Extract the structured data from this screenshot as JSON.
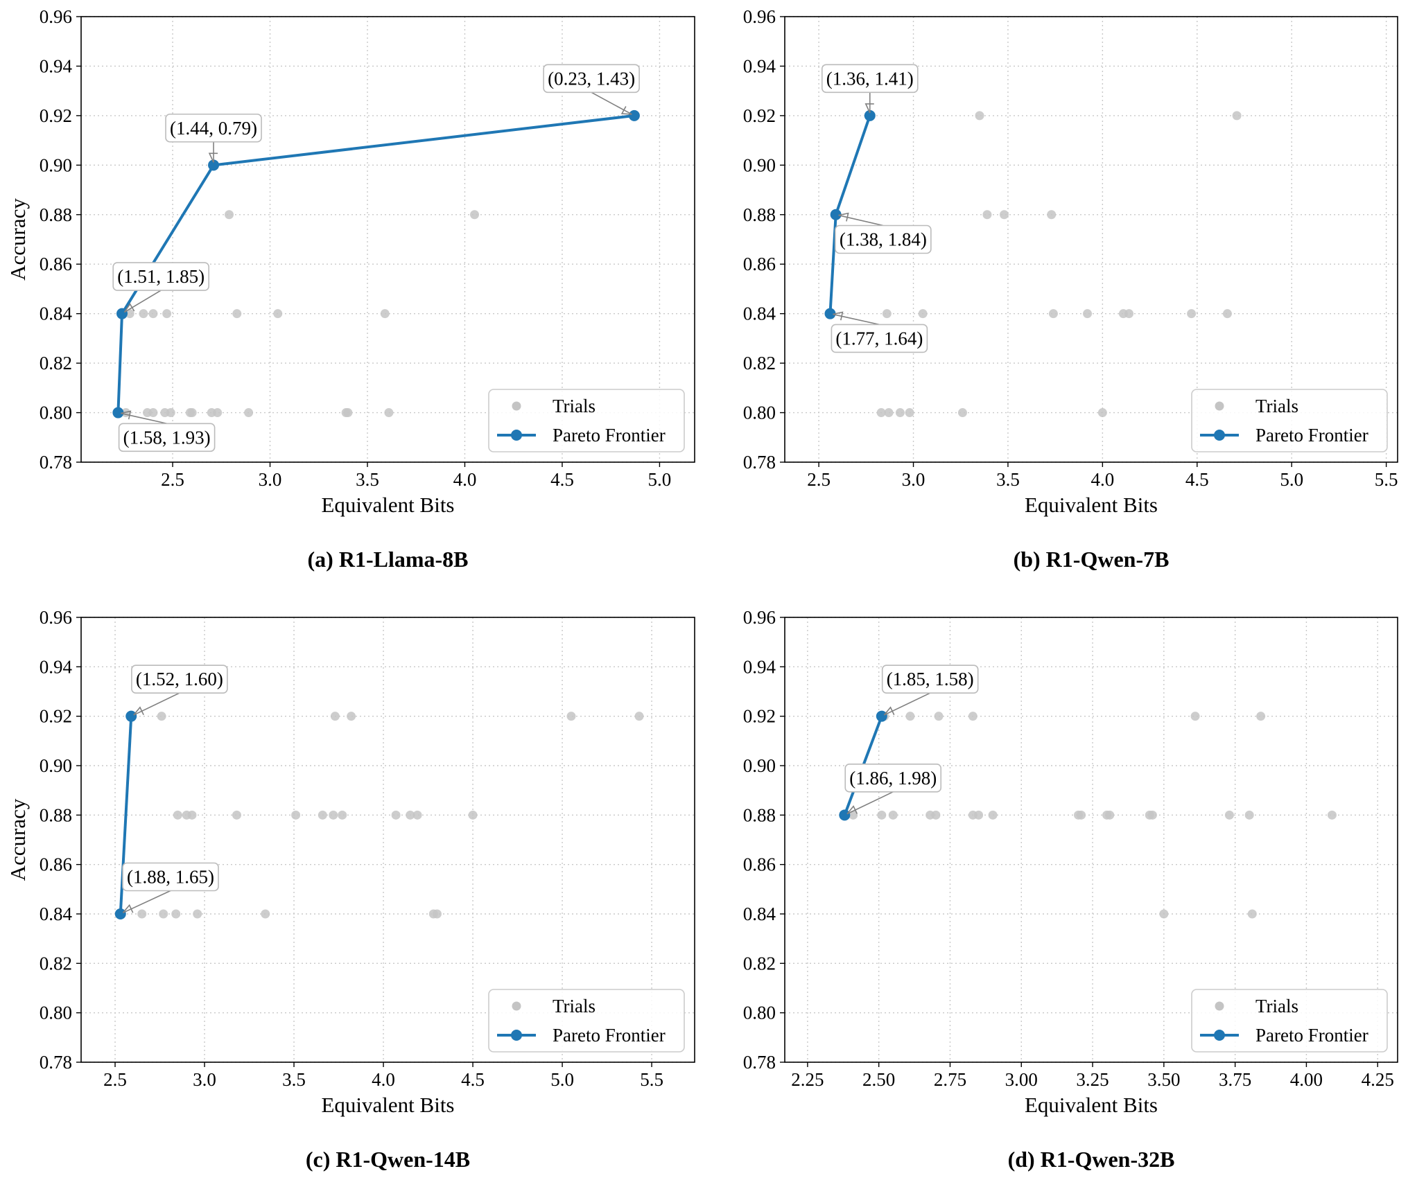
{
  "figure": {
    "layout": "2x2 grid of scatter plots with Pareto frontier lines",
    "colors": {
      "frontier": "#1f77b4",
      "trials": "#c4c4c4",
      "grid": "#c8c8c8",
      "annotation_border": "#bbbbbb",
      "arrow": "#808080"
    }
  },
  "chart_data": [
    {
      "type": "scatter",
      "panel_label": "(a) R1-Llama-8B",
      "xlabel": "Equivalent Bits",
      "ylabel": "Accuracy",
      "xlim": [
        2.03,
        5.18
      ],
      "ylim": [
        0.78,
        0.96
      ],
      "xticks": [
        "2.5",
        "3.0",
        "3.5",
        "4.0",
        "4.5",
        "5.0"
      ],
      "yticks": [
        "0.78",
        "0.80",
        "0.82",
        "0.84",
        "0.86",
        "0.88",
        "0.90",
        "0.92",
        "0.94",
        "0.96"
      ],
      "grid": true,
      "legend": {
        "position": "bottom-right",
        "entries": [
          "Trials",
          "Pareto Frontier"
        ]
      },
      "trials": [
        [
          2.26,
          0.8
        ],
        [
          2.37,
          0.8
        ],
        [
          2.4,
          0.8
        ],
        [
          2.46,
          0.8
        ],
        [
          2.49,
          0.8
        ],
        [
          2.59,
          0.8
        ],
        [
          2.6,
          0.8
        ],
        [
          2.7,
          0.8
        ],
        [
          2.73,
          0.8
        ],
        [
          2.89,
          0.8
        ],
        [
          3.39,
          0.8
        ],
        [
          3.4,
          0.8
        ],
        [
          3.61,
          0.8
        ],
        [
          2.28,
          0.84
        ],
        [
          2.35,
          0.84
        ],
        [
          2.4,
          0.84
        ],
        [
          2.47,
          0.84
        ],
        [
          2.83,
          0.84
        ],
        [
          3.04,
          0.84
        ],
        [
          3.59,
          0.84
        ],
        [
          2.79,
          0.88
        ],
        [
          4.05,
          0.88
        ]
      ],
      "frontier": [
        [
          2.22,
          0.8
        ],
        [
          2.24,
          0.84
        ],
        [
          2.71,
          0.9
        ],
        [
          4.87,
          0.92
        ]
      ],
      "annotations": [
        {
          "text": "(1.58, 1.93)",
          "point": [
            2.22,
            0.8
          ],
          "label_at": [
            2.47,
            0.79
          ]
        },
        {
          "text": "(1.51, 1.85)",
          "point": [
            2.24,
            0.84
          ],
          "label_at": [
            2.44,
            0.855
          ]
        },
        {
          "text": "(1.44, 0.79)",
          "point": [
            2.71,
            0.9
          ],
          "label_at": [
            2.71,
            0.915
          ]
        },
        {
          "text": "(0.23, 1.43)",
          "point": [
            4.87,
            0.92
          ],
          "label_at": [
            4.65,
            0.935
          ]
        }
      ]
    },
    {
      "type": "scatter",
      "panel_label": "(b) R1-Qwen-7B",
      "xlabel": "Equivalent Bits",
      "ylabel": "",
      "xlim": [
        2.32,
        5.56
      ],
      "ylim": [
        0.78,
        0.96
      ],
      "xticks": [
        "2.5",
        "3.0",
        "3.5",
        "4.0",
        "4.5",
        "5.0",
        "5.5"
      ],
      "yticks": [
        "0.78",
        "0.80",
        "0.82",
        "0.84",
        "0.86",
        "0.88",
        "0.90",
        "0.92",
        "0.94",
        "0.96"
      ],
      "grid": true,
      "legend": {
        "position": "bottom-right",
        "entries": [
          "Trials",
          "Pareto Frontier"
        ]
      },
      "trials": [
        [
          2.83,
          0.8
        ],
        [
          2.87,
          0.8
        ],
        [
          2.93,
          0.8
        ],
        [
          2.98,
          0.8
        ],
        [
          3.26,
          0.8
        ],
        [
          4.0,
          0.8
        ],
        [
          2.86,
          0.84
        ],
        [
          3.05,
          0.84
        ],
        [
          3.74,
          0.84
        ],
        [
          3.92,
          0.84
        ],
        [
          4.11,
          0.84
        ],
        [
          4.14,
          0.84
        ],
        [
          4.47,
          0.84
        ],
        [
          4.66,
          0.84
        ],
        [
          3.39,
          0.88
        ],
        [
          3.48,
          0.88
        ],
        [
          3.73,
          0.88
        ],
        [
          3.35,
          0.92
        ],
        [
          4.71,
          0.92
        ]
      ],
      "frontier": [
        [
          2.56,
          0.84
        ],
        [
          2.59,
          0.88
        ],
        [
          2.77,
          0.92
        ]
      ],
      "annotations": [
        {
          "text": "(1.77, 1.64)",
          "point": [
            2.56,
            0.84
          ],
          "label_at": [
            2.82,
            0.83
          ]
        },
        {
          "text": "(1.38, 1.84)",
          "point": [
            2.59,
            0.88
          ],
          "label_at": [
            2.84,
            0.87
          ]
        },
        {
          "text": "(1.36, 1.41)",
          "point": [
            2.77,
            0.92
          ],
          "label_at": [
            2.77,
            0.935
          ]
        }
      ]
    },
    {
      "type": "scatter",
      "panel_label": "(c) R1-Qwen-14B",
      "xlabel": "Equivalent Bits",
      "ylabel": "Accuracy",
      "xlim": [
        2.31,
        5.74
      ],
      "ylim": [
        0.78,
        0.96
      ],
      "xticks": [
        "2.5",
        "3.0",
        "3.5",
        "4.0",
        "4.5",
        "5.0",
        "5.5"
      ],
      "yticks": [
        "0.78",
        "0.80",
        "0.82",
        "0.84",
        "0.86",
        "0.88",
        "0.90",
        "0.92",
        "0.94",
        "0.96"
      ],
      "grid": true,
      "legend": {
        "position": "bottom-right",
        "entries": [
          "Trials",
          "Pareto Frontier"
        ]
      },
      "trials": [
        [
          2.65,
          0.84
        ],
        [
          2.77,
          0.84
        ],
        [
          2.84,
          0.84
        ],
        [
          2.96,
          0.84
        ],
        [
          3.34,
          0.84
        ],
        [
          4.28,
          0.84
        ],
        [
          4.3,
          0.84
        ],
        [
          2.85,
          0.88
        ],
        [
          2.9,
          0.88
        ],
        [
          2.93,
          0.88
        ],
        [
          3.18,
          0.88
        ],
        [
          3.51,
          0.88
        ],
        [
          3.66,
          0.88
        ],
        [
          3.72,
          0.88
        ],
        [
          3.77,
          0.88
        ],
        [
          4.07,
          0.88
        ],
        [
          4.15,
          0.88
        ],
        [
          4.19,
          0.88
        ],
        [
          4.5,
          0.88
        ],
        [
          2.76,
          0.92
        ],
        [
          3.73,
          0.92
        ],
        [
          3.82,
          0.92
        ],
        [
          5.05,
          0.92
        ],
        [
          5.43,
          0.92
        ]
      ],
      "frontier": [
        [
          2.53,
          0.84
        ],
        [
          2.59,
          0.92
        ]
      ],
      "annotations": [
        {
          "text": "(1.88, 1.65)",
          "point": [
            2.53,
            0.84
          ],
          "label_at": [
            2.81,
            0.855
          ]
        },
        {
          "text": "(1.52, 1.60)",
          "point": [
            2.59,
            0.92
          ],
          "label_at": [
            2.86,
            0.935
          ]
        }
      ]
    },
    {
      "type": "scatter",
      "panel_label": "(d) R1-Qwen-32B",
      "xlabel": "Equivalent Bits",
      "ylabel": "",
      "xlim": [
        2.17,
        4.32
      ],
      "ylim": [
        0.78,
        0.96
      ],
      "xticks": [
        "2.25",
        "2.50",
        "2.75",
        "3.00",
        "3.25",
        "3.50",
        "3.75",
        "4.00",
        "4.25"
      ],
      "yticks": [
        "0.78",
        "0.80",
        "0.82",
        "0.84",
        "0.86",
        "0.88",
        "0.90",
        "0.92",
        "0.94",
        "0.96"
      ],
      "grid": true,
      "legend": {
        "position": "bottom-right",
        "entries": [
          "Trials",
          "Pareto Frontier"
        ]
      },
      "trials": [
        [
          3.5,
          0.84
        ],
        [
          3.81,
          0.84
        ],
        [
          2.41,
          0.88
        ],
        [
          2.51,
          0.88
        ],
        [
          2.55,
          0.88
        ],
        [
          2.68,
          0.88
        ],
        [
          2.7,
          0.88
        ],
        [
          2.83,
          0.88
        ],
        [
          2.85,
          0.88
        ],
        [
          2.9,
          0.88
        ],
        [
          3.2,
          0.88
        ],
        [
          3.21,
          0.88
        ],
        [
          3.3,
          0.88
        ],
        [
          3.31,
          0.88
        ],
        [
          3.45,
          0.88
        ],
        [
          3.46,
          0.88
        ],
        [
          3.73,
          0.88
        ],
        [
          3.8,
          0.88
        ],
        [
          4.09,
          0.88
        ],
        [
          2.52,
          0.92
        ],
        [
          2.61,
          0.92
        ],
        [
          2.71,
          0.92
        ],
        [
          2.83,
          0.92
        ],
        [
          3.61,
          0.92
        ],
        [
          3.84,
          0.92
        ]
      ],
      "frontier": [
        [
          2.38,
          0.88
        ],
        [
          2.51,
          0.92
        ]
      ],
      "annotations": [
        {
          "text": "(1.86, 1.98)",
          "point": [
            2.38,
            0.88
          ],
          "label_at": [
            2.55,
            0.895
          ]
        },
        {
          "text": "(1.85, 1.58)",
          "point": [
            2.51,
            0.92
          ],
          "label_at": [
            2.68,
            0.935
          ]
        }
      ]
    }
  ]
}
